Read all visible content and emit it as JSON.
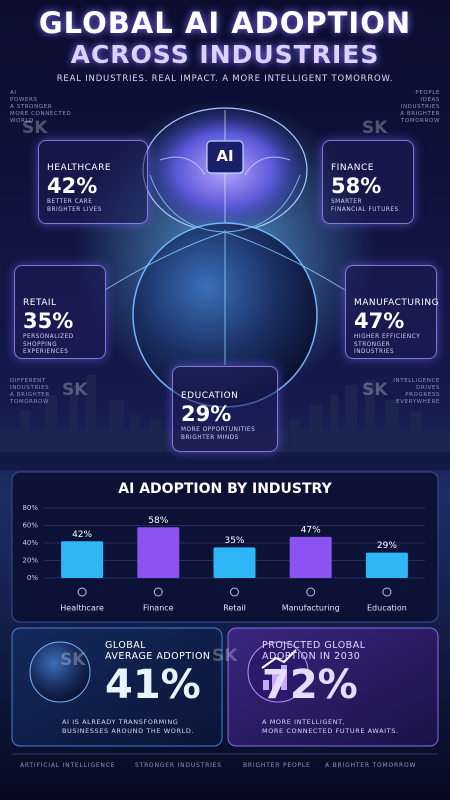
{
  "header": {
    "title_lines": [
      "GLOBAL AI ADOPTION",
      "ACROSS INDUSTRIES"
    ],
    "subtitle": "REAL INDUSTRIES. REAL IMPACT. A MORE INTELLIGENT TOMORROW."
  },
  "side_notes": [
    {
      "lines": [
        "AI",
        "POWERS",
        "A STRONGER",
        "MORE CONNECTED",
        "WORLD"
      ]
    },
    {
      "lines": [
        "PEOPLE",
        "IDEAS",
        "INDUSTRIES",
        "A BRIGHTER",
        "TOMORROW"
      ]
    },
    {
      "lines": [
        "DIFFERENT",
        "INDUSTRIES",
        "A BRIGHTER",
        "TOMORROW"
      ]
    },
    {
      "lines": [
        "INTELLIGENCE",
        "DRIVES",
        "PROGRESS",
        "EVERYWHERE"
      ]
    }
  ],
  "watermark": "SK",
  "center_label": "AI",
  "cards": [
    {
      "name": "HEALTHCARE",
      "percent": "42%",
      "lines": [
        "BETTER CARE",
        "BRIGHTER LIVES"
      ]
    },
    {
      "name": "FINANCE",
      "percent": "58%",
      "lines": [
        "SMARTER",
        "FINANCIAL FUTURES"
      ]
    },
    {
      "name": "RETAIL",
      "percent": "35%",
      "lines": [
        "PERSONALIZED",
        "SHOPPING EXPERIENCES"
      ]
    },
    {
      "name": "MANUFACTURING",
      "percent": "47%",
      "lines": [
        "HIGHER EFFICIENCY",
        "STRONGER INDUSTRIES"
      ]
    },
    {
      "name": "EDUCATION",
      "percent": "29%",
      "lines": [
        "MORE OPPORTUNITIES",
        "BRIGHTER MINDS"
      ]
    }
  ],
  "chart_data": {
    "type": "bar",
    "title": "AI ADOPTION BY INDUSTRY",
    "categories": [
      "Healthcare",
      "Finance",
      "Retail",
      "Manufacturing",
      "Education"
    ],
    "values": [
      42,
      58,
      35,
      47,
      29
    ],
    "value_labels": [
      "42%",
      "58%",
      "35%",
      "47%",
      "29%"
    ],
    "colors": [
      "#2fb6f6",
      "#8c52f2",
      "#2fb6f6",
      "#8c52f2",
      "#2fb6f6"
    ],
    "ylim": [
      0,
      80
    ],
    "yticks": [
      {
        "value": 0,
        "label": "0%"
      },
      {
        "value": 20,
        "label": "20%"
      },
      {
        "value": 40,
        "label": "40%"
      },
      {
        "value": 60,
        "label": "60%"
      },
      {
        "value": 80,
        "label": "80%"
      }
    ],
    "grid": true
  },
  "summary": [
    {
      "lines": [
        "GLOBAL",
        "AVERAGE ADOPTION"
      ],
      "value": "41%",
      "description": [
        "AI IS ALREADY TRANSFORMING",
        "BUSINESSES AROUND THE WORLD."
      ]
    },
    {
      "lines": [
        "PROJECTED GLOBAL",
        "ADOPTION IN 2030"
      ],
      "value": "72%",
      "description": [
        "A MORE INTELLIGENT,",
        "MORE CONNECTED FUTURE AWAITS."
      ]
    }
  ],
  "footer": [
    "ARTIFICIAL INTELLIGENCE",
    "STRONGER INDUSTRIES",
    "BRIGHTER PEOPLE",
    "A BRIGHTER TOMORROW"
  ]
}
